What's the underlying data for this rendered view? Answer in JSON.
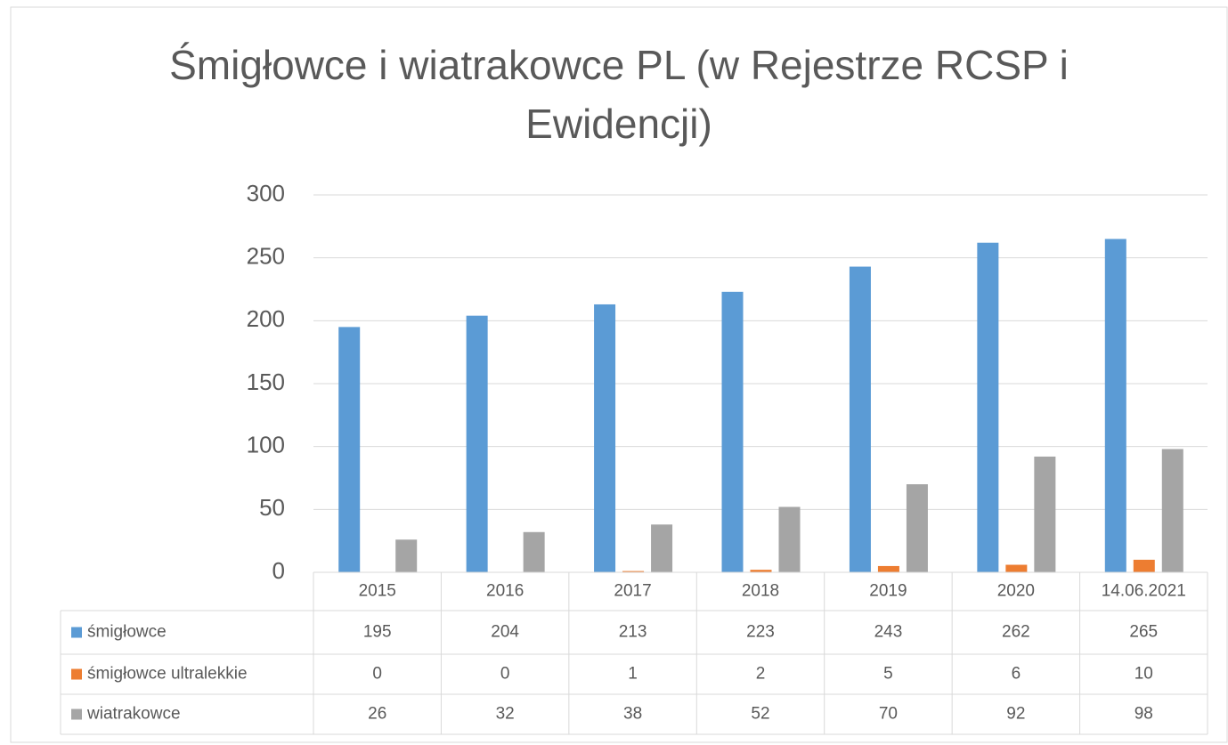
{
  "chart_data": {
    "type": "bar",
    "title": "Śmigłowce i wiatrakowce PL (w Rejestrze RCSP i Ewidencji)",
    "categories": [
      "2015",
      "2016",
      "2017",
      "2018",
      "2019",
      "2020",
      "14.06.2021"
    ],
    "series": [
      {
        "name": "śmigłowce",
        "color": "#5b9bd5",
        "values": [
          195,
          204,
          213,
          223,
          243,
          262,
          265
        ]
      },
      {
        "name": "śmigłowce ultralekkie",
        "color": "#ed7d31",
        "values": [
          0,
          0,
          1,
          2,
          5,
          6,
          10
        ]
      },
      {
        "name": "wiatrakowce",
        "color": "#a5a5a5",
        "values": [
          26,
          32,
          38,
          52,
          70,
          92,
          98
        ]
      }
    ],
    "ylim": [
      0,
      300
    ],
    "yticks": [
      0,
      50,
      100,
      150,
      200,
      250,
      300
    ],
    "grid": true,
    "legend": "data-table"
  }
}
